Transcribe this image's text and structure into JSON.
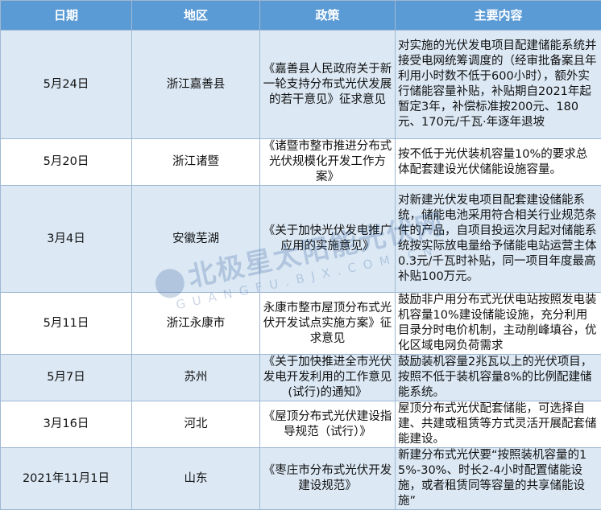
{
  "headers": [
    "日期",
    "地区",
    "政策",
    "主要内容"
  ],
  "rows": [
    {
      "date": "5月24日",
      "region": "浙江嘉善县",
      "policy": "《嘉善县人民政府关于新一轮支持分布式光伏发展的若干意见》征求意见",
      "content": "对实施的光伏发电项目配建储能系统并接受电网统筹调度的（经审批备案且年利用小时数不低于600小时），额外实行储能容量补贴，补贴期自2021年起暂定3年，补偿标准按200元、180元、170元/千瓦·年逐年退坡"
    },
    {
      "date": "5月20日",
      "region": "浙江诸暨",
      "policy": "《诸暨市整市推进分布式光伏规模化开发工作方案》",
      "content": "按不低于光伏装机容量10%的要求总体配套建设光伏储能设施容量。"
    },
    {
      "date": "3月4日",
      "region": "安徽芜湖",
      "policy": "《关于加快光伏发电推广应用的实施意见》",
      "content": "对新建光伏发电项目配套建设储能系统，储能电池采用符合相关行业规范条件的产品，自项目投运次月起对储能系统按实际放电量给予储能电站运营主体0.3元/千瓦时补贴，同一项目年度最高补贴100万元。"
    },
    {
      "date": "5月11日",
      "region": "浙江永康市",
      "policy": "永康市整市屋顶分布式光伏开发试点实施方案》征求意见",
      "content": "鼓励非户用分布式光伏电站按照发电装机容量10%建设储能设施，充分利用目录分时电价机制，主动削峰填谷，优化区域电网负荷需求"
    },
    {
      "date": "5月7日",
      "region": "苏州",
      "policy": "《关于加快推进全市光伏发电开发利用的工作意见(试行)的通知》",
      "content": "鼓励装机容量2兆瓦以上的光伏项目，按照不低于装机容量8%的比例配建储能系统。"
    },
    {
      "date": "3月16日",
      "region": "河北",
      "policy": "《屋顶分布式光伏建设指导规范（试行）》",
      "content": "屋顶分布式光伏配套储能，可选择自建、共建或租赁等方式灵活开展配套储能建设。"
    },
    {
      "date": "2021年11月1日",
      "region": "山东",
      "policy": "《枣庄市分布式光伏开发建设规范》",
      "content": "新建分布式光伏要“按照装机容量的15%-30%、时长2-4小时配置储能设施，或者租赁同等容量的共享储能设施”"
    }
  ],
  "watermark": {
    "title": "北极星太阳能光伏网",
    "sub": "GUANGFU.BJX.COM.CN"
  },
  "colors": {
    "header": "#5b9bd5",
    "alt_row": "#dce9f5",
    "border": "#9fb8d3"
  }
}
